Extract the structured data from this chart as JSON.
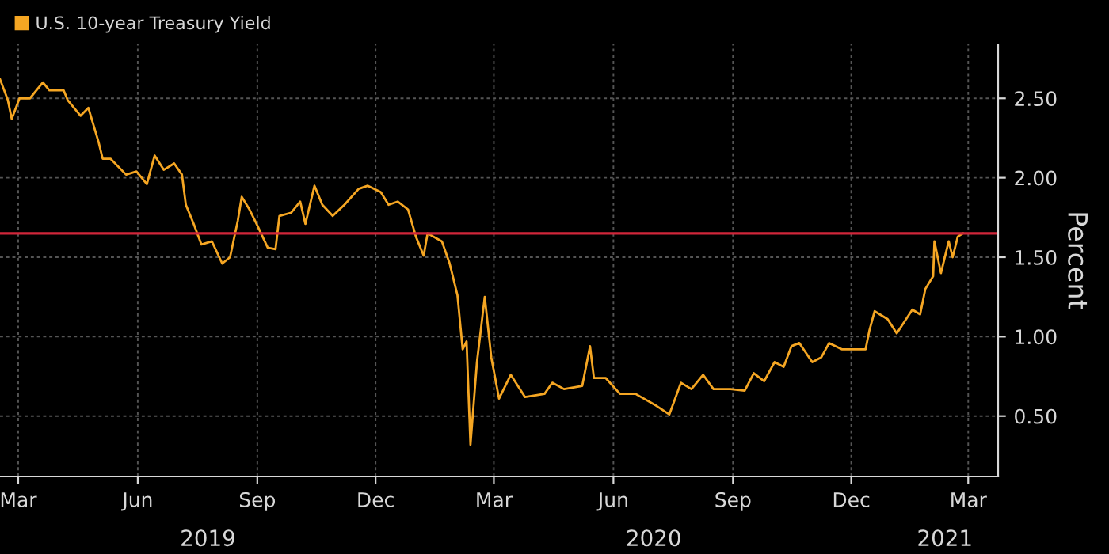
{
  "chart_data": {
    "type": "line",
    "x": [
      "2019-02-15",
      "2019-02-21",
      "2019-02-24",
      "2019-03-02",
      "2019-03-10",
      "2019-03-20",
      "2019-03-25",
      "2019-04-05",
      "2019-04-08",
      "2019-04-18",
      "2019-04-24",
      "2019-05-02",
      "2019-05-05",
      "2019-05-11",
      "2019-05-23",
      "2019-05-31",
      "2019-06-08",
      "2019-06-14",
      "2019-06-21",
      "2019-06-29",
      "2019-07-05",
      "2019-07-08",
      "2019-07-14",
      "2019-07-20",
      "2019-07-28",
      "2019-08-05",
      "2019-08-11",
      "2019-08-17",
      "2019-08-20",
      "2019-08-26",
      "2019-09-01",
      "2019-09-09",
      "2019-09-15",
      "2019-09-18",
      "2019-09-27",
      "2019-10-04",
      "2019-10-08",
      "2019-10-15",
      "2019-10-21",
      "2019-10-29",
      "2019-11-07",
      "2019-11-18",
      "2019-11-25",
      "2019-12-05",
      "2019-12-11",
      "2019-12-18",
      "2019-12-26",
      "2020-01-01",
      "2020-01-07",
      "2020-01-10",
      "2020-01-21",
      "2020-01-27",
      "2020-02-02",
      "2020-02-06",
      "2020-02-09",
      "2020-02-12",
      "2020-02-17",
      "2020-02-23",
      "2020-02-28",
      "2020-03-05",
      "2020-03-14",
      "2020-03-25",
      "2020-04-09",
      "2020-04-15",
      "2020-04-24",
      "2020-05-08",
      "2020-05-14",
      "2020-05-17",
      "2020-05-26",
      "2020-06-06",
      "2020-06-18",
      "2020-07-03",
      "2020-07-14",
      "2020-07-23",
      "2020-07-31",
      "2020-08-09",
      "2020-08-17",
      "2020-08-30",
      "2020-09-10",
      "2020-09-17",
      "2020-09-25",
      "2020-10-03",
      "2020-10-10",
      "2020-10-16",
      "2020-10-22",
      "2020-11-01",
      "2020-11-08",
      "2020-11-14",
      "2020-11-24",
      "2020-12-12",
      "2020-12-15",
      "2020-12-19",
      "2020-12-29",
      "2021-01-05",
      "2021-01-17",
      "2021-01-23",
      "2021-01-27",
      "2021-02-02",
      "2021-02-03",
      "2021-02-08",
      "2021-02-14",
      "2021-02-17",
      "2021-02-21",
      "2021-02-25"
    ],
    "series": [
      {
        "name": "U.S. 10-year Treasury Yield",
        "color": "#f5a623",
        "values": [
          2.62,
          2.49,
          2.37,
          2.5,
          2.5,
          2.6,
          2.55,
          2.55,
          2.49,
          2.39,
          2.44,
          2.22,
          2.12,
          2.12,
          2.02,
          2.04,
          1.96,
          2.14,
          2.05,
          2.09,
          2.02,
          1.83,
          1.71,
          1.58,
          1.6,
          1.46,
          1.5,
          1.73,
          1.88,
          1.8,
          1.7,
          1.56,
          1.55,
          1.76,
          1.78,
          1.85,
          1.71,
          1.95,
          1.83,
          1.76,
          1.83,
          1.93,
          1.95,
          1.91,
          1.83,
          1.85,
          1.8,
          1.63,
          1.51,
          1.65,
          1.6,
          1.46,
          1.26,
          0.92,
          0.97,
          0.32,
          0.84,
          1.25,
          0.87,
          0.61,
          0.76,
          0.62,
          0.64,
          0.71,
          0.67,
          0.69,
          0.94,
          0.74,
          0.74,
          0.64,
          0.64,
          0.57,
          0.51,
          0.71,
          0.67,
          0.76,
          0.67,
          0.67,
          0.66,
          0.77,
          0.72,
          0.84,
          0.81,
          0.94,
          0.96,
          0.84,
          0.87,
          0.96,
          0.92,
          0.92,
          1.04,
          1.16,
          1.11,
          1.02,
          1.17,
          1.14,
          1.3,
          1.38,
          1.6,
          1.4,
          1.6,
          1.5,
          1.63,
          1.65
        ]
      }
    ],
    "ylabel": "Percent",
    "xlim": [
      "2019-02-15",
      "2021-03-24"
    ],
    "xticks": [
      {
        "value": "2019-03-01",
        "label": "Mar"
      },
      {
        "value": "2019-06-01",
        "label": "Jun"
      },
      {
        "value": "2019-09-01",
        "label": "Sep"
      },
      {
        "value": "2019-12-01",
        "label": "Dec"
      },
      {
        "value": "2020-03-01",
        "label": "Mar"
      },
      {
        "value": "2020-06-01",
        "label": "Jun"
      },
      {
        "value": "2020-09-01",
        "label": "Sep"
      },
      {
        "value": "2020-12-01",
        "label": "Dec"
      },
      {
        "value": "2021-03-01",
        "label": "Mar"
      }
    ],
    "ylim": [
      0.12,
      2.84
    ],
    "yticks": [
      {
        "value": 0.5,
        "label": "0.50"
      },
      {
        "value": 1.0,
        "label": "1.00"
      },
      {
        "value": 1.5,
        "label": "1.50"
      },
      {
        "value": 2.0,
        "label": "2.00"
      },
      {
        "value": 2.5,
        "label": "2.50"
      }
    ],
    "ref_lines": [
      {
        "axis": "y",
        "value": 1.65,
        "color": "#d0263a"
      }
    ],
    "annotations": [
      "2019",
      "2020",
      "2021"
    ],
    "grid": true,
    "legend": "top left",
    "line_style": "solid",
    "marker": "none"
  }
}
